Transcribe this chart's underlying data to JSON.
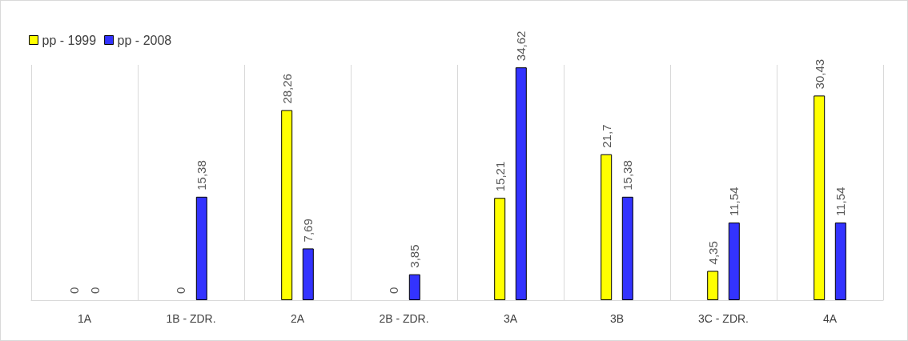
{
  "chart_data": {
    "type": "bar",
    "categories": [
      "1A",
      "1B - ZDR.",
      "2A",
      "2B - ZDR.",
      "3A",
      "3B",
      "3C - ZDR.",
      "4A"
    ],
    "series": [
      {
        "name": "pp - 1999",
        "color": "#ffff00",
        "values": [
          0,
          0,
          28.26,
          0,
          15.21,
          21.7,
          4.35,
          30.43
        ],
        "value_labels": [
          "0",
          "0",
          "28,26",
          "0",
          "15,21",
          "21,7",
          "4,35",
          "30,43"
        ]
      },
      {
        "name": "pp - 2008",
        "color": "#3333ff",
        "values": [
          0,
          15.38,
          7.69,
          3.85,
          34.62,
          15.38,
          11.54,
          11.54
        ],
        "value_labels": [
          "0",
          "15,38",
          "7,69",
          "3,85",
          "34,62",
          "15,38",
          "11,54",
          "11,54"
        ]
      }
    ],
    "grid": "x",
    "legend": "top left",
    "tick_labels": "x"
  }
}
